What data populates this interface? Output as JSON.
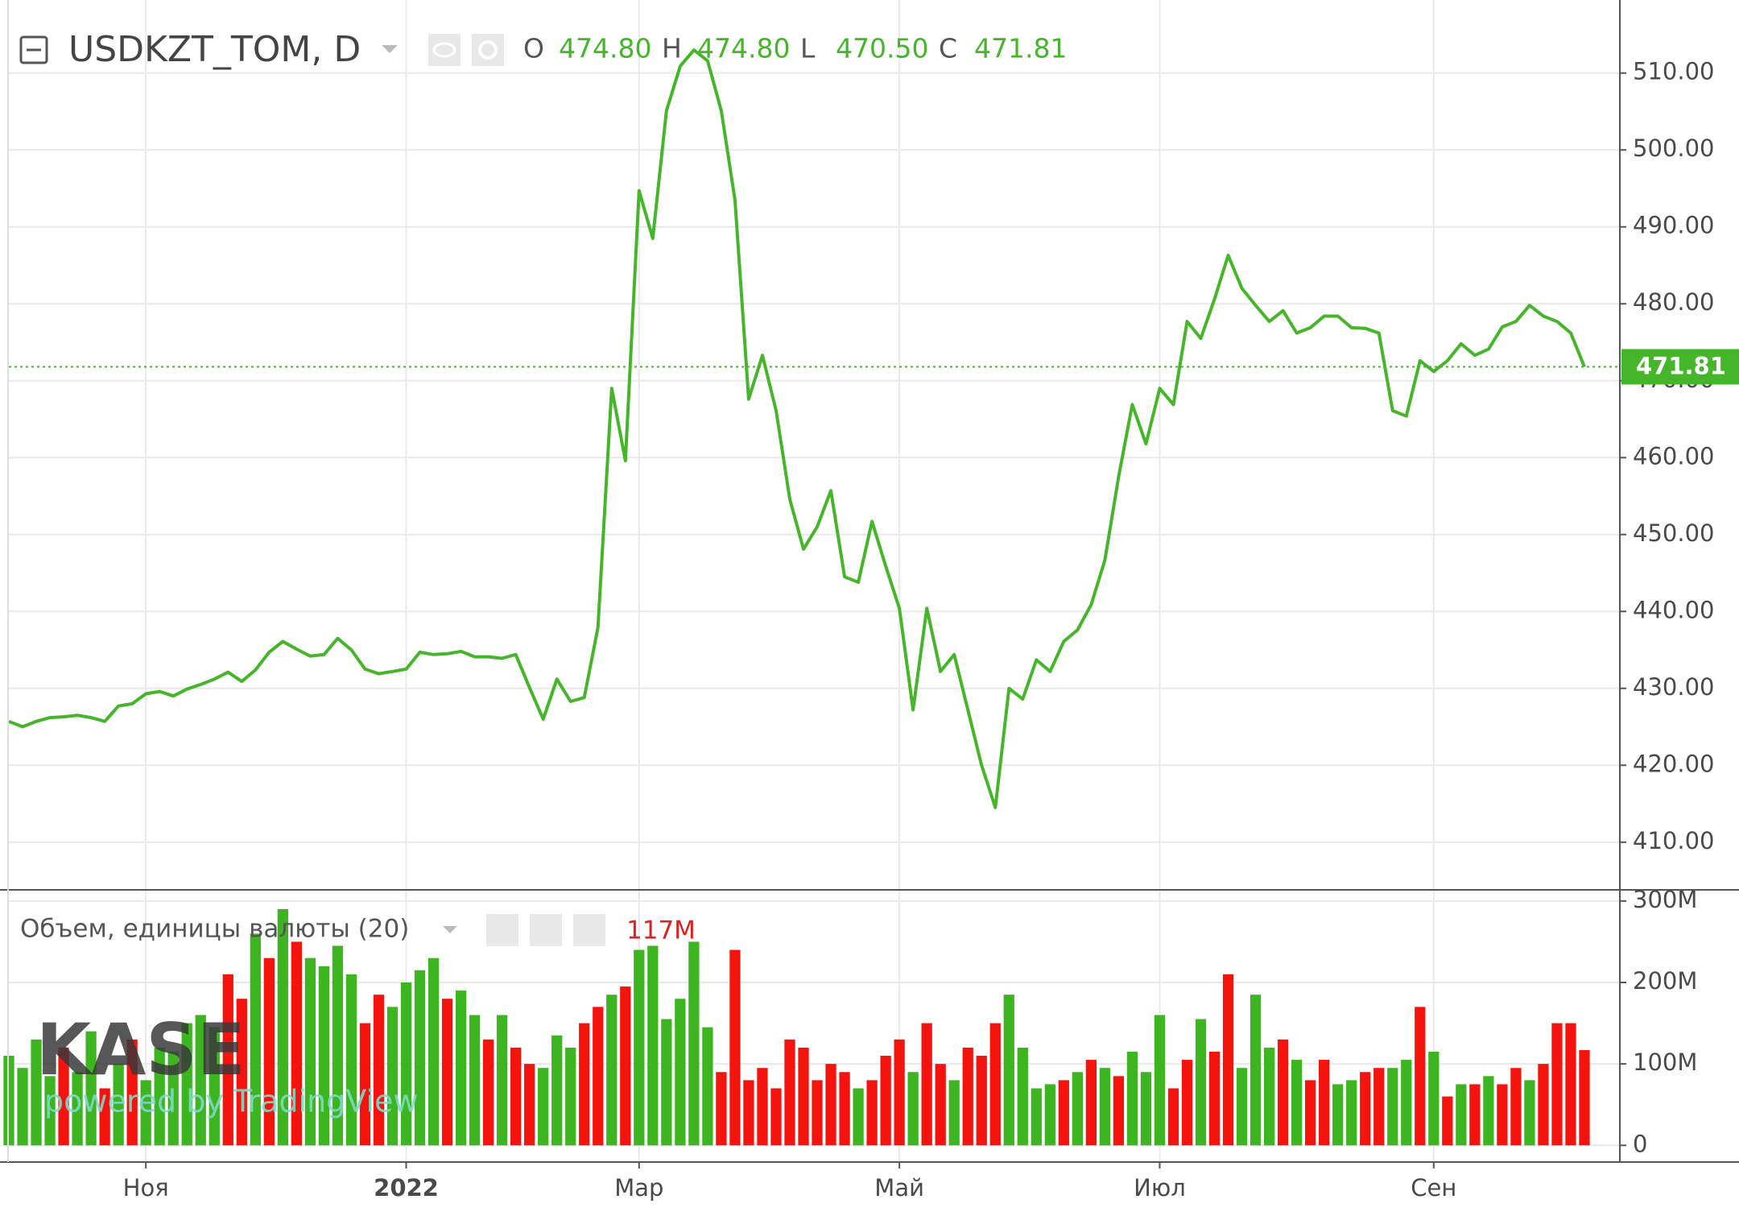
{
  "chart_data": [
    {
      "type": "line",
      "title": "USDKZT_TOM, D",
      "color": "#45b52a",
      "ohlc": [
        {
          "name": "O",
          "value": "474.80"
        },
        {
          "name": "H",
          "value": "474.80"
        },
        {
          "name": "L",
          "value": "470.50"
        },
        {
          "name": "C",
          "value": "471.81"
        }
      ],
      "categories": [
        null,
        null,
        null,
        null,
        null,
        null,
        null,
        null,
        null,
        null,
        "Ноя",
        null,
        null,
        null,
        null,
        null,
        null,
        null,
        null,
        null,
        null,
        null,
        null,
        null,
        null,
        null,
        null,
        null,
        null,
        "2022",
        null,
        null,
        null,
        null,
        null,
        null,
        null,
        null,
        null,
        null,
        null,
        null,
        null,
        null,
        null,
        null,
        "Мар",
        null,
        null,
        null,
        null,
        null,
        null,
        null,
        null,
        null,
        null,
        null,
        null,
        null,
        null,
        null,
        null,
        null,
        null,
        "Май",
        null,
        null,
        null,
        null,
        null,
        null,
        null,
        null,
        null,
        null,
        null,
        null,
        null,
        null,
        null,
        null,
        null,
        null,
        "Июл",
        null,
        null,
        null,
        null,
        null,
        null,
        null,
        null,
        null,
        null,
        null,
        null,
        null,
        null,
        null,
        null,
        null,
        null,
        null,
        "Сен",
        null,
        null,
        null,
        null,
        null,
        null,
        null,
        null,
        null,
        null,
        null
      ],
      "values": [
        425.7,
        425.0,
        425.7,
        426.2,
        426.3,
        426.5,
        426.2,
        425.7,
        427.7,
        428.0,
        429.3,
        429.6,
        429.0,
        429.9,
        430.5,
        431.2,
        432.1,
        430.9,
        432.4,
        434.7,
        436.1,
        435.1,
        434.2,
        434.4,
        436.5,
        435.0,
        432.5,
        431.9,
        432.2,
        432.5,
        434.7,
        434.4,
        434.5,
        434.8,
        434.1,
        434.1,
        433.9,
        434.4,
        430.1,
        426.0,
        431.2,
        428.3,
        428.8,
        437.9,
        469.0,
        459.6,
        494.7,
        488.5,
        505.1,
        510.9,
        513.0,
        511.6,
        505.1,
        493.5,
        467.6,
        473.3,
        466.1,
        454.6,
        448.1,
        451.0,
        455.7,
        444.5,
        443.8,
        451.7,
        445.9,
        440.4,
        427.2,
        440.4,
        432.2,
        434.4,
        427.2,
        420.0,
        414.5,
        430.0,
        428.6,
        433.7,
        432.2,
        436.1,
        437.6,
        440.9,
        446.7,
        457.5,
        466.9,
        461.8,
        469.0,
        466.9,
        477.7,
        475.5,
        480.6,
        486.3,
        482.0,
        479.8,
        477.7,
        479.1,
        476.2,
        476.9,
        478.4,
        478.4,
        476.9,
        476.8,
        476.2,
        466.1,
        465.4,
        472.6,
        471.2,
        472.6,
        474.8,
        473.3,
        474.1,
        477.0,
        477.7,
        479.8,
        478.4,
        477.7,
        476.2,
        471.81
      ],
      "last_value": 471.81,
      "ylim": [
        403.8,
        519.5
      ],
      "yticks": [
        {
          "value": 410,
          "label": "410.00"
        },
        {
          "value": 420,
          "label": "420.00"
        },
        {
          "value": 430,
          "label": "430.00"
        },
        {
          "value": 440,
          "label": "440.00"
        },
        {
          "value": 450,
          "label": "450.00"
        },
        {
          "value": 460,
          "label": "460.00"
        },
        {
          "value": 470,
          "label": "470.00"
        },
        {
          "value": 480,
          "label": "480.00"
        },
        {
          "value": 490,
          "label": "490.00"
        },
        {
          "value": 500,
          "label": "500.00"
        },
        {
          "value": 510,
          "label": "510.00"
        }
      ],
      "grid": true
    },
    {
      "type": "bar",
      "title": "Объем, единицы валюты (20)",
      "current_value": {
        "value": 117000000,
        "label": "117M"
      },
      "values": [
        110000000,
        95000000,
        130000000,
        85000000,
        120000000,
        90000000,
        140000000,
        70000000,
        100000000,
        130000000,
        80000000,
        120000000,
        115000000,
        150000000,
        160000000,
        145000000,
        210000000,
        180000000,
        260000000,
        230000000,
        290000000,
        250000000,
        230000000,
        220000000,
        245000000,
        210000000,
        150000000,
        185000000,
        170000000,
        200000000,
        215000000,
        230000000,
        180000000,
        190000000,
        160000000,
        130000000,
        160000000,
        120000000,
        100000000,
        95000000,
        135000000,
        120000000,
        150000000,
        170000000,
        185000000,
        195000000,
        240000000,
        245000000,
        155000000,
        180000000,
        250000000,
        145000000,
        90000000,
        240000000,
        80000000,
        95000000,
        70000000,
        130000000,
        120000000,
        80000000,
        100000000,
        90000000,
        70000000,
        80000000,
        110000000,
        130000000,
        90000000,
        150000000,
        100000000,
        80000000,
        120000000,
        110000000,
        150000000,
        185000000,
        120000000,
        70000000,
        75000000,
        80000000,
        90000000,
        105000000,
        95000000,
        85000000,
        115000000,
        90000000,
        160000000,
        70000000,
        105000000,
        155000000,
        115000000,
        210000000,
        95000000,
        185000000,
        120000000,
        130000000,
        105000000,
        80000000,
        105000000,
        75000000,
        80000000,
        90000000,
        95000000,
        95000000,
        105000000,
        170000000,
        115000000,
        60000000,
        75000000,
        75000000,
        85000000,
        75000000,
        95000000,
        80000000,
        100000000,
        150000000,
        150000000,
        117000000
      ],
      "colors": [
        "#3cb521",
        "#3cb521",
        "#3cb521",
        "#3cb521",
        "#f5130d",
        "#3cb521",
        "#3cb521",
        "#f5130d",
        "#3cb521",
        "#f5130d",
        "#3cb521",
        "#3cb521",
        "#3cb521",
        "#3cb521",
        "#3cb521",
        "#3cb521",
        "#f5130d",
        "#f5130d",
        "#3cb521",
        "#f5130d",
        "#3cb521",
        "#f5130d",
        "#3cb521",
        "#3cb521",
        "#3cb521",
        "#3cb521",
        "#f5130d",
        "#f5130d",
        "#3cb521",
        "#3cb521",
        "#3cb521",
        "#3cb521",
        "#f5130d",
        "#3cb521",
        "#3cb521",
        "#f5130d",
        "#3cb521",
        "#f5130d",
        "#f5130d",
        "#3cb521",
        "#3cb521",
        "#3cb521",
        "#f5130d",
        "#f5130d",
        "#3cb521",
        "#f5130d",
        "#3cb521",
        "#3cb521",
        "#3cb521",
        "#3cb521",
        "#3cb521",
        "#3cb521",
        "#f5130d",
        "#f5130d",
        "#f5130d",
        "#f5130d",
        "#f5130d",
        "#f5130d",
        "#f5130d",
        "#f5130d",
        "#f5130d",
        "#f5130d",
        "#3cb521",
        "#f5130d",
        "#f5130d",
        "#f5130d",
        "#3cb521",
        "#f5130d",
        "#f5130d",
        "#3cb521",
        "#f5130d",
        "#f5130d",
        "#f5130d",
        "#3cb521",
        "#3cb521",
        "#3cb521",
        "#3cb521",
        "#f5130d",
        "#3cb521",
        "#f5130d",
        "#3cb521",
        "#f5130d",
        "#3cb521",
        "#3cb521",
        "#3cb521",
        "#f5130d",
        "#f5130d",
        "#3cb521",
        "#f5130d",
        "#f5130d",
        "#3cb521",
        "#3cb521",
        "#3cb521",
        "#f5130d",
        "#3cb521",
        "#f5130d",
        "#f5130d",
        "#3cb521",
        "#3cb521",
        "#f5130d",
        "#f5130d",
        "#3cb521",
        "#3cb521",
        "#f5130d",
        "#3cb521",
        "#f5130d",
        "#3cb521",
        "#f5130d",
        "#3cb521",
        "#f5130d",
        "#f5130d",
        "#3cb521",
        "#f5130d",
        "#f5130d",
        "#f5130d",
        "#f5130d"
      ],
      "ylim": [
        -20500000,
        313700000
      ],
      "yticks": [
        0,
        {
          "value": 100000000,
          "label": "100M"
        },
        {
          "value": 200000000,
          "label": "200M"
        },
        {
          "value": 300000000,
          "label": "300M"
        }
      ],
      "grid": true
    }
  ],
  "watermark": {
    "logo": "KASE",
    "caption": "powered by TradingView"
  }
}
